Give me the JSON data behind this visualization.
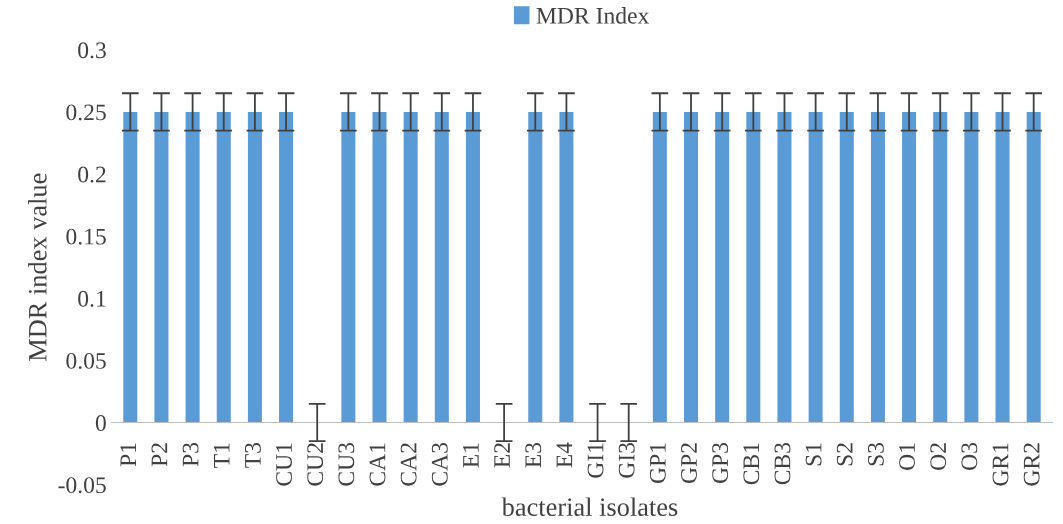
{
  "chart_data": {
    "type": "bar",
    "xlabel": "bacterial isolates",
    "ylabel": "MDR index value",
    "categories": [
      "P1",
      "P2",
      "P3",
      "T1",
      "T3",
      "CU1",
      "CU2",
      "CU3",
      "CA1",
      "CA2",
      "CA3",
      "E1",
      "E2",
      "E3",
      "E4",
      "GI1",
      "GI3",
      "GP1",
      "GP2",
      "GP3",
      "CB1",
      "CB3",
      "S1",
      "S2",
      "S3",
      "O1",
      "O2",
      "O3",
      "GR1",
      "GR2"
    ],
    "series": [
      {
        "name": "MDR Index",
        "color": "#5b9bd5",
        "values": [
          0.25,
          0.25,
          0.25,
          0.25,
          0.25,
          0.25,
          0,
          0.25,
          0.25,
          0.25,
          0.25,
          0.25,
          0,
          0.25,
          0.25,
          0,
          0,
          0.25,
          0.25,
          0.25,
          0.25,
          0.25,
          0.25,
          0.25,
          0.25,
          0.25,
          0.25,
          0.25,
          0.25,
          0.25
        ],
        "errors": [
          0.015,
          0.015,
          0.015,
          0.015,
          0.015,
          0.015,
          0.015,
          0.015,
          0.015,
          0.015,
          0.015,
          0.015,
          0.015,
          0.015,
          0.015,
          0.015,
          0.015,
          0.015,
          0.015,
          0.015,
          0.015,
          0.015,
          0.015,
          0.015,
          0.015,
          0.015,
          0.015,
          0.015,
          0.015,
          0.015
        ]
      }
    ],
    "ylim": [
      -0.05,
      0.3
    ],
    "yticks": [
      {
        "value": -0.05,
        "label": "-0.05"
      },
      0,
      0.05,
      0.1,
      0.15,
      0.2,
      0.25,
      0.3
    ],
    "grid": false,
    "legend": "top"
  }
}
